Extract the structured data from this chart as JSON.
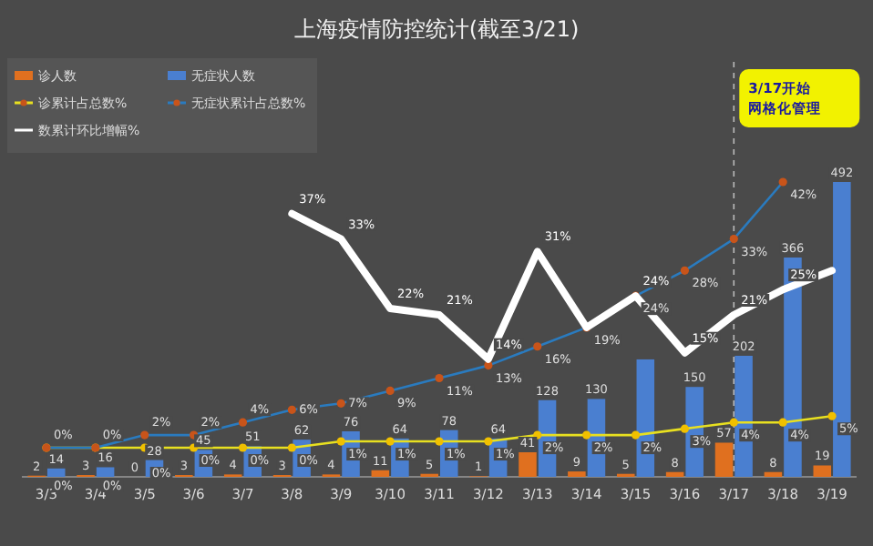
{
  "chart_data": {
    "type": "bar",
    "title": "上海疫情防控统计(截至3/21)",
    "categories": [
      "3/3",
      "3/4",
      "3/5",
      "3/6",
      "3/7",
      "3/8",
      "3/9",
      "3/10",
      "3/11",
      "3/12",
      "3/13",
      "3/14",
      "3/15",
      "3/16",
      "3/17",
      "3/18",
      "3/19"
    ],
    "series": [
      {
        "name": "诊人数",
        "color": "#e0701f",
        "values": [
          2,
          3,
          0,
          3,
          4,
          3,
          4,
          11,
          5,
          1,
          41,
          9,
          5,
          8,
          57,
          8,
          19
        ],
        "value_labels": [
          "2",
          "3",
          "0",
          "3",
          "4",
          "3",
          "4",
          "11",
          "5",
          "1",
          "41",
          "9",
          "5",
          "8",
          "57",
          "8",
          "19"
        ]
      },
      {
        "name": "无症状人数",
        "color": "#4a7fd0",
        "values": [
          14,
          16,
          28,
          45,
          51,
          62,
          76,
          64,
          78,
          64,
          128,
          130,
          196,
          150,
          202,
          366,
          492
        ],
        "value_labels": [
          "14",
          "16",
          "28",
          "45",
          "51",
          "62",
          "76",
          "64",
          "78",
          "64",
          "128",
          "130",
          null,
          "150",
          "202",
          "366",
          "492"
        ]
      },
      {
        "name": "诊累计占总数%",
        "type": "line",
        "axis": "y2",
        "color": "#e8e020",
        "marker": "circle",
        "values": [
          0,
          0,
          0,
          0,
          0,
          0,
          1,
          1,
          1,
          1,
          2,
          2,
          2,
          3,
          4,
          4,
          5
        ],
        "value_labels": [
          "0%",
          "0%",
          "0%",
          "0%",
          "0%",
          "0%",
          "1%",
          "1%",
          "1%",
          "1%",
          "2%",
          "2%",
          "2%",
          "3%",
          "4%",
          "4%",
          "5%"
        ]
      },
      {
        "name": "无症状累计占总数%",
        "type": "line",
        "axis": "y2",
        "color": "#2a7bbf",
        "marker": "circle",
        "values": [
          0,
          0,
          2,
          2,
          4,
          6,
          7,
          9,
          11,
          13,
          16,
          19,
          24,
          28,
          33,
          42,
          null
        ],
        "value_labels": [
          "0%",
          "0%",
          "2%",
          "2%",
          "4%",
          "6%",
          "7%",
          "9%",
          "11%",
          "13%",
          "16%",
          "19%",
          "24%",
          "28%",
          "33%",
          "42%",
          null
        ]
      },
      {
        "name": "数累计环比增幅%",
        "type": "line",
        "axis": "y2",
        "color": "#ffffff",
        "marker": "none",
        "values": [
          null,
          null,
          null,
          null,
          null,
          37,
          33,
          22,
          21,
          14,
          31,
          19,
          24,
          15,
          21,
          25,
          28
        ],
        "value_labels": [
          null,
          null,
          null,
          null,
          null,
          "37%",
          "33%",
          "22%",
          "21%",
          "14%",
          "31%",
          null,
          "24%",
          "15%",
          "21%",
          "25%",
          null
        ]
      }
    ],
    "ref_lines": [
      {
        "axis": "x",
        "value": "3/17",
        "label": "3/17开始网格化管理",
        "line_style": "dashed"
      }
    ],
    "legend": "top left"
  }
}
